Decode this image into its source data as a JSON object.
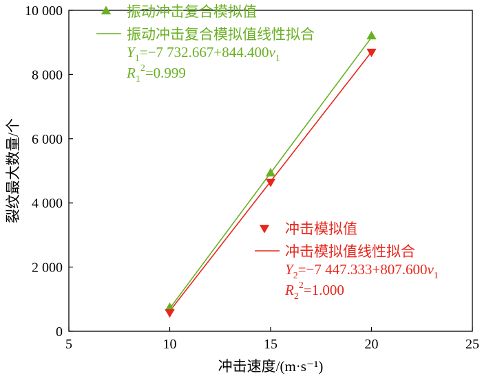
{
  "chart_data": {
    "type": "scatter",
    "xlabel": "冲击速度/(m·s⁻¹)",
    "ylabel": "裂纹最大数量/个",
    "xlim": [
      5,
      25
    ],
    "ylim": [
      0,
      10000
    ],
    "xticks": [
      5,
      10,
      15,
      20,
      25
    ],
    "yticks": [
      0,
      2000,
      4000,
      6000,
      8000,
      10000
    ],
    "xtick_labels": [
      "5",
      "10",
      "15",
      "20",
      "25"
    ],
    "ytick_labels": [
      "0",
      "2 000",
      "4 000",
      "6 000",
      "8 000",
      "10 000"
    ],
    "grid": false,
    "series": [
      {
        "name": "振动冲击复合模拟值",
        "marker": "triangle-up",
        "color": "#6ab023",
        "x": [
          10,
          15,
          20
        ],
        "y": [
          740,
          4930,
          9200
        ]
      },
      {
        "name": "冲击模拟值",
        "marker": "triangle-down",
        "color": "#e8261c",
        "x": [
          10,
          15,
          20
        ],
        "y": [
          580,
          4650,
          8700
        ]
      }
    ],
    "fits": [
      {
        "name": "振动冲击复合模拟值线性拟合",
        "color": "#6ab023",
        "intercept": -7732.667,
        "slope": 844.4,
        "x_range": [
          10,
          20
        ],
        "equation": {
          "lhs_var": "Y",
          "lhs_sub": "1",
          "eq_mid": "=−7 732.667+844.400",
          "rhs_var": "v",
          "rhs_sub": "1"
        },
        "r2": {
          "var": "R",
          "sub": "1",
          "sup": "2",
          "value": "=0.999"
        }
      },
      {
        "name": "冲击模拟值线性拟合",
        "color": "#e8261c",
        "intercept": -7447.333,
        "slope": 807.6,
        "x_range": [
          10,
          20
        ],
        "equation": {
          "lhs_var": "Y",
          "lhs_sub": "2",
          "eq_mid": "=−7 447.333+807.600",
          "rhs_var": "v",
          "rhs_sub": "1"
        },
        "r2": {
          "var": "R",
          "sub": "2",
          "sup": "2",
          "value": "=1.000"
        }
      }
    ],
    "legends": [
      "top-left",
      "bottom-right"
    ]
  }
}
